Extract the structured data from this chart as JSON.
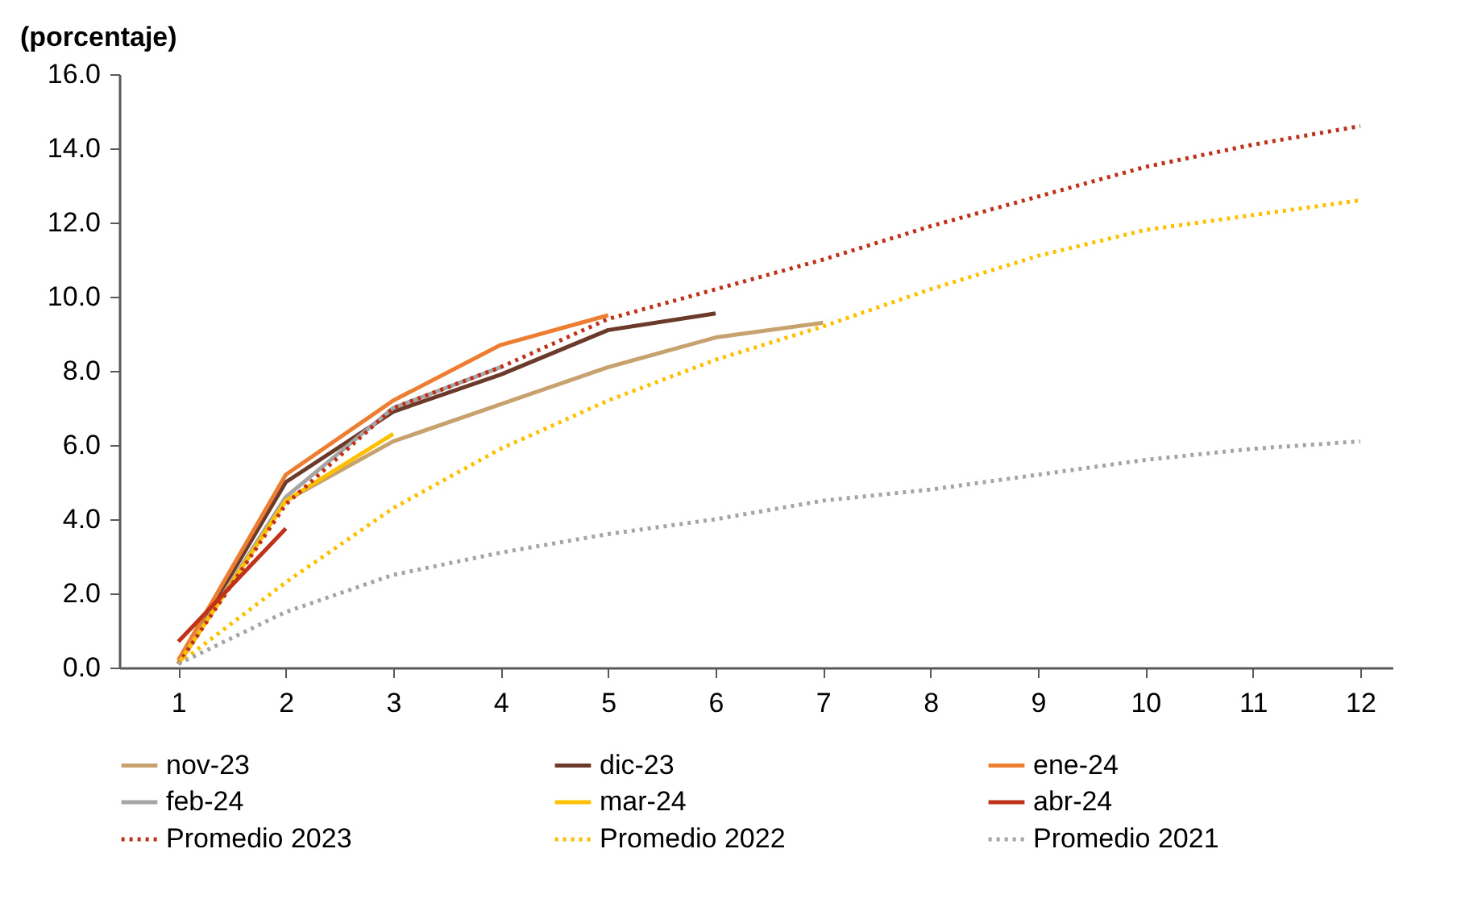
{
  "chart_data": {
    "type": "line",
    "ylabel": "(porcentaje)",
    "x": [
      1,
      2,
      3,
      4,
      5,
      6,
      7,
      8,
      9,
      10,
      11,
      12
    ],
    "xlim": [
      0.45,
      12.3
    ],
    "xticks": [
      1,
      2,
      3,
      4,
      5,
      6,
      7,
      8,
      9,
      10,
      11,
      12
    ],
    "ylim": [
      0,
      16
    ],
    "yticks": [
      {
        "value": 0,
        "label": "0.0"
      },
      {
        "value": 2,
        "label": "2.0"
      },
      {
        "value": 4,
        "label": "4.0"
      },
      {
        "value": 6,
        "label": "6.0"
      },
      {
        "value": 8,
        "label": "8.0"
      },
      {
        "value": 10,
        "label": "10.0"
      },
      {
        "value": 12,
        "label": "12.0"
      },
      {
        "value": 14,
        "label": "14.0"
      },
      {
        "value": 16,
        "label": "16.0"
      }
    ],
    "grid": false,
    "legend": "bottom",
    "marker": "none",
    "series": [
      {
        "name": "nov-23",
        "color": "#c8a26e",
        "line_style": "solid",
        "values": [
          0.1,
          4.5,
          6.1,
          7.1,
          8.1,
          8.9,
          9.3,
          null,
          null,
          null,
          null,
          null
        ]
      },
      {
        "name": "dic-23",
        "color": "#6b3a2a",
        "line_style": "solid",
        "values": [
          0.1,
          5.0,
          6.9,
          7.9,
          9.1,
          9.55,
          null,
          null,
          null,
          null,
          null,
          null
        ]
      },
      {
        "name": "ene-24",
        "color": "#ed7d31",
        "line_style": "solid",
        "values": [
          0.2,
          5.2,
          7.2,
          8.7,
          9.5,
          null,
          null,
          null,
          null,
          null,
          null,
          null
        ]
      },
      {
        "name": "feb-24",
        "color": "#a5a5a5",
        "line_style": "solid",
        "values": [
          0.1,
          4.6,
          7.0,
          8.1,
          null,
          null,
          null,
          null,
          null,
          null,
          null,
          null
        ]
      },
      {
        "name": "mar-24",
        "color": "#ffc000",
        "line_style": "solid",
        "values": [
          0.1,
          4.5,
          6.3,
          null,
          null,
          null,
          null,
          null,
          null,
          null,
          null,
          null
        ]
      },
      {
        "name": "abr-24",
        "color": "#c0311a",
        "line_style": "solid",
        "values": [
          0.7,
          3.75,
          null,
          null,
          null,
          null,
          null,
          null,
          null,
          null,
          null,
          null
        ]
      },
      {
        "name": "Promedio 2023",
        "color": "#c0311a",
        "line_style": "dotted",
        "values": [
          0.1,
          4.4,
          7.0,
          8.1,
          9.4,
          10.2,
          11.0,
          11.9,
          12.7,
          13.5,
          14.1,
          14.6
        ]
      },
      {
        "name": "Promedio 2022",
        "color": "#ffc000",
        "line_style": "dotted",
        "values": [
          0.1,
          2.3,
          4.3,
          5.9,
          7.2,
          8.3,
          9.2,
          10.2,
          11.1,
          11.8,
          12.2,
          12.6
        ]
      },
      {
        "name": "Promedio 2021",
        "color": "#a5a5a5",
        "line_style": "dotted",
        "values": [
          0.1,
          1.5,
          2.5,
          3.1,
          3.6,
          4.0,
          4.5,
          4.8,
          5.2,
          5.6,
          5.9,
          6.1
        ]
      }
    ]
  }
}
